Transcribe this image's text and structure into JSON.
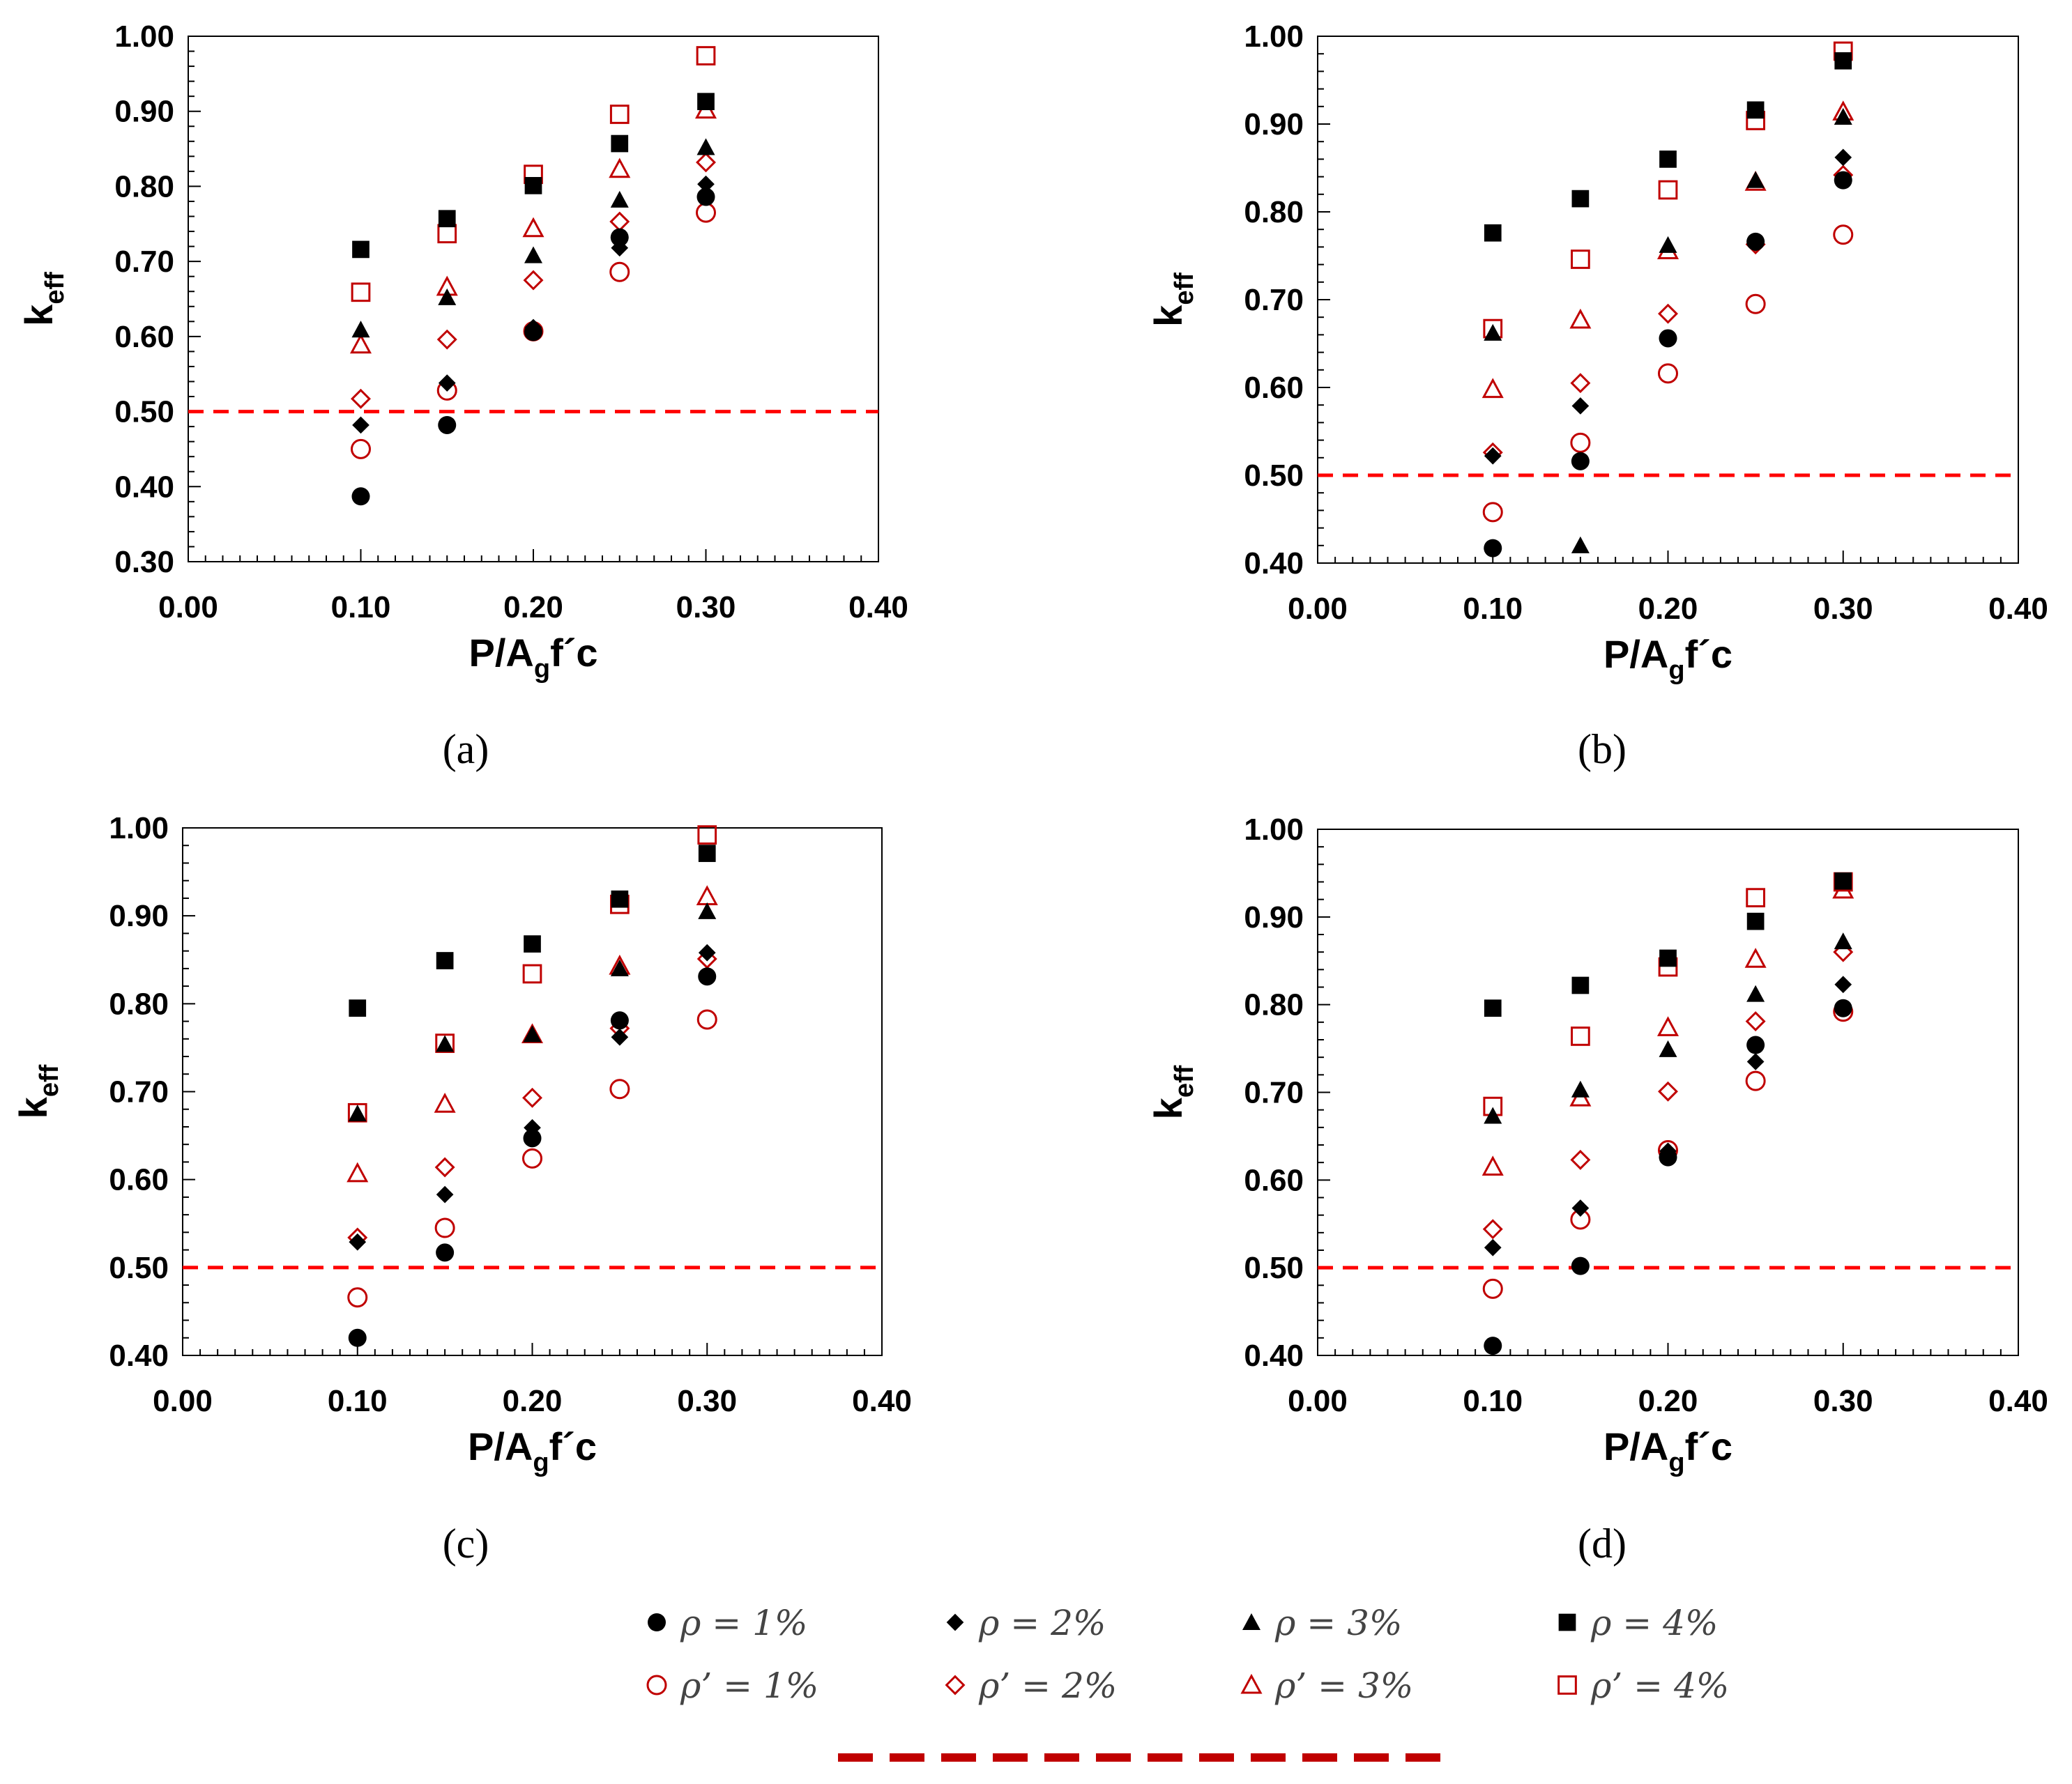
{
  "figure": {
    "legend": {
      "entries": [
        {
          "key": "s1",
          "label": "ρ = 1%"
        },
        {
          "key": "s2",
          "label": "ρ = 2%"
        },
        {
          "key": "s3",
          "label": "ρ = 3%"
        },
        {
          "key": "s4",
          "label": "ρ = 4%"
        },
        {
          "key": "p1",
          "label": "ρ’ = 1%"
        },
        {
          "key": "p2",
          "label": "ρ’ = 2%"
        },
        {
          "key": "p3",
          "label": "ρ’ = 3%"
        },
        {
          "key": "p4",
          "label": "ρ’ = 4%"
        }
      ]
    },
    "colors": {
      "black": "#000000",
      "red": "#c00000",
      "dashed_line": "#ff0000"
    }
  },
  "chart_data": [
    {
      "panel": "(a)",
      "type": "scatter",
      "ylabel_main": "k",
      "ylabel_sub": "eff",
      "xlabel_main": "P/A",
      "xlabel_sub": "g",
      "xlabel_tail": "f´c",
      "xlim": [
        0.0,
        0.4
      ],
      "ylim": [
        0.3,
        1.0
      ],
      "xticks": [
        "0.00",
        "0.10",
        "0.20",
        "0.30",
        "0.40"
      ],
      "yticks": [
        "0.30",
        "0.40",
        "0.50",
        "0.60",
        "0.70",
        "0.80",
        "0.90",
        "1.00"
      ],
      "reference_line_y": 0.5,
      "x": [
        0.1,
        0.15,
        0.2,
        0.25,
        0.3
      ],
      "series": [
        {
          "key": "s1",
          "values": [
            0.387,
            0.482,
            0.606,
            0.732,
            0.786
          ]
        },
        {
          "key": "s2",
          "values": [
            0.482,
            0.538,
            0.612,
            0.718,
            0.803
          ]
        },
        {
          "key": "s3",
          "values": [
            0.609,
            0.652,
            0.708,
            0.782,
            0.852
          ]
        },
        {
          "key": "s4",
          "values": [
            0.716,
            0.757,
            0.801,
            0.857,
            0.913
          ]
        },
        {
          "key": "p1",
          "values": [
            0.45,
            0.528,
            0.607,
            0.686,
            0.765
          ]
        },
        {
          "key": "p2",
          "values": [
            0.517,
            0.596,
            0.675,
            0.753,
            0.832
          ]
        },
        {
          "key": "p3",
          "values": [
            0.589,
            0.666,
            0.744,
            0.823,
            0.902
          ]
        },
        {
          "key": "p4",
          "values": [
            0.659,
            0.737,
            0.816,
            0.896,
            0.974
          ]
        }
      ]
    },
    {
      "panel": "(b)",
      "type": "scatter",
      "ylabel_main": "k",
      "ylabel_sub": "eff",
      "xlabel_main": "P/A",
      "xlabel_sub": "g",
      "xlabel_tail": "f´c",
      "xlim": [
        0.0,
        0.4
      ],
      "ylim": [
        0.4,
        1.0
      ],
      "xticks": [
        "0.00",
        "0.10",
        "0.20",
        "0.30",
        "0.40"
      ],
      "yticks": [
        "0.40",
        "0.50",
        "0.60",
        "0.70",
        "0.80",
        "0.90",
        "1.00"
      ],
      "reference_line_y": 0.5,
      "x": [
        0.1,
        0.15,
        0.2,
        0.25,
        0.3
      ],
      "series": [
        {
          "key": "s1",
          "values": [
            0.417,
            0.516,
            0.656,
            0.766,
            0.836
          ]
        },
        {
          "key": "s2",
          "values": [
            0.522,
            0.579,
            0.656,
            0.765,
            0.862
          ]
        },
        {
          "key": "s3",
          "values": [
            0.662,
            0.42,
            0.762,
            0.836,
            0.908
          ]
        },
        {
          "key": "s4",
          "values": [
            0.776,
            0.815,
            0.86,
            0.916,
            0.972
          ]
        },
        {
          "key": "p1",
          "values": [
            0.458,
            0.537,
            0.616,
            0.695,
            0.774
          ]
        },
        {
          "key": "p2",
          "values": [
            0.526,
            0.605,
            0.684,
            0.763,
            0.842
          ]
        },
        {
          "key": "p3",
          "values": [
            0.598,
            0.677,
            0.756,
            0.834,
            0.914
          ]
        },
        {
          "key": "p4",
          "values": [
            0.667,
            0.746,
            0.825,
            0.904,
            0.983
          ]
        }
      ]
    },
    {
      "panel": "(c)",
      "type": "scatter",
      "ylabel_main": "k",
      "ylabel_sub": "eff",
      "xlabel_main": "P/A",
      "xlabel_sub": "g",
      "xlabel_tail": "f´c",
      "xlim": [
        0.0,
        0.4
      ],
      "ylim": [
        0.4,
        1.0
      ],
      "xticks": [
        "0.00",
        "0.10",
        "0.20",
        "0.30",
        "0.40"
      ],
      "yticks": [
        "0.40",
        "0.50",
        "0.60",
        "0.70",
        "0.80",
        "0.90",
        "1.00"
      ],
      "reference_line_y": 0.5,
      "x": [
        0.1,
        0.15,
        0.2,
        0.25,
        0.3
      ],
      "series": [
        {
          "key": "s1",
          "values": [
            0.42,
            0.517,
            0.647,
            0.781,
            0.831
          ]
        },
        {
          "key": "s2",
          "values": [
            0.529,
            0.583,
            0.659,
            0.762,
            0.858
          ]
        },
        {
          "key": "s3",
          "values": [
            0.675,
            0.754,
            0.765,
            0.84,
            0.905
          ]
        },
        {
          "key": "s4",
          "values": [
            0.795,
            0.849,
            0.868,
            0.919,
            0.971
          ]
        },
        {
          "key": "p1",
          "values": [
            0.466,
            0.545,
            0.624,
            0.703,
            0.782
          ]
        },
        {
          "key": "p2",
          "values": [
            0.534,
            0.614,
            0.693,
            0.772,
            0.851
          ]
        },
        {
          "key": "p3",
          "values": [
            0.607,
            0.686,
            0.765,
            0.843,
            0.922
          ]
        },
        {
          "key": "p4",
          "values": [
            0.676,
            0.755,
            0.834,
            0.913,
            0.992
          ]
        }
      ]
    },
    {
      "panel": "(d)",
      "type": "scatter",
      "ylabel_main": "k",
      "ylabel_sub": "eff",
      "xlabel_main": "P/A",
      "xlabel_sub": "g",
      "xlabel_tail": "f´c",
      "xlim": [
        0.0,
        0.4
      ],
      "ylim": [
        0.4,
        1.0
      ],
      "xticks": [
        "0.00",
        "0.10",
        "0.20",
        "0.30",
        "0.40"
      ],
      "yticks": [
        "0.40",
        "0.50",
        "0.60",
        "0.70",
        "0.80",
        "0.90",
        "1.00"
      ],
      "reference_line_y": 0.5,
      "x": [
        0.1,
        0.15,
        0.2,
        0.25,
        0.3
      ],
      "series": [
        {
          "key": "s1",
          "values": [
            0.411,
            0.502,
            0.626,
            0.754,
            0.796
          ]
        },
        {
          "key": "s2",
          "values": [
            0.523,
            0.568,
            0.633,
            0.735,
            0.823
          ]
        },
        {
          "key": "s3",
          "values": [
            0.673,
            0.703,
            0.749,
            0.812,
            0.872
          ]
        },
        {
          "key": "s4",
          "values": [
            0.796,
            0.822,
            0.853,
            0.895,
            0.941
          ]
        },
        {
          "key": "p1",
          "values": [
            0.476,
            0.555,
            0.634,
            0.713,
            0.792
          ]
        },
        {
          "key": "p2",
          "values": [
            0.544,
            0.623,
            0.701,
            0.781,
            0.86
          ]
        },
        {
          "key": "p3",
          "values": [
            0.615,
            0.694,
            0.774,
            0.852,
            0.931
          ]
        },
        {
          "key": "p4",
          "values": [
            0.684,
            0.764,
            0.843,
            0.922,
            0.94
          ]
        }
      ]
    }
  ]
}
